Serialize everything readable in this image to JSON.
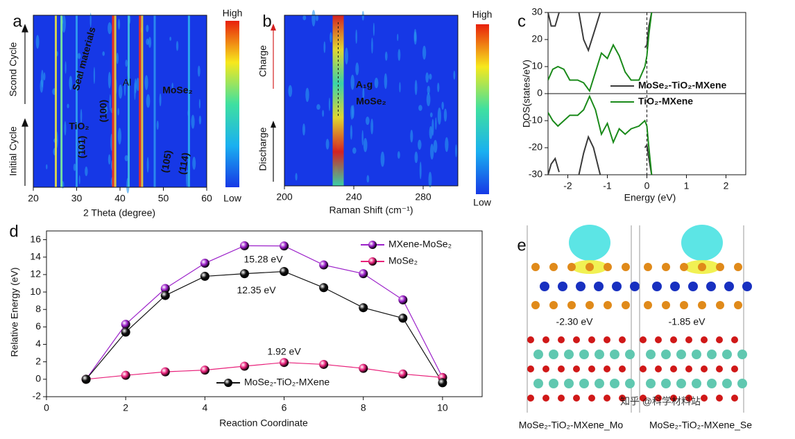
{
  "chart_data": [
    {
      "type": "heatmap",
      "panel": "a",
      "xlabel": "2 Theta (degree)",
      "xlim": [
        20,
        60
      ],
      "xticks": [
        20,
        30,
        40,
        50,
        60
      ],
      "background": "#1638e6",
      "peaks": [
        {
          "x": 25.2,
          "color": "#e8e040"
        },
        {
          "x": 26.5,
          "color": "#7ef09a"
        },
        {
          "x": 30.0,
          "color": "#30a0f0"
        },
        {
          "x": 38.4,
          "color": "#ff3010"
        },
        {
          "x": 38.9,
          "color": "#f0d030"
        },
        {
          "x": 42.0,
          "color": "#40c0e0"
        },
        {
          "x": 44.6,
          "color": "#ff3010"
        },
        {
          "x": 45.1,
          "color": "#f0d030"
        },
        {
          "x": 48.0,
          "color": "#2c90f0"
        },
        {
          "x": 55.9,
          "color": "#30b0f0"
        }
      ],
      "colorbar_labels": [
        "High",
        "Low"
      ],
      "colorbar_colors": [
        "#e8200c",
        "#f7e81c",
        "#3fe0a0",
        "#1ab0f0",
        "#1638e6"
      ],
      "annotations": [
        "Seal materials",
        "Al",
        "MoSe₂",
        "TiO₂",
        "(101)",
        "(100)",
        "(105)",
        "(114)",
        "Scond Cycle",
        "Initial Cycle"
      ]
    },
    {
      "type": "heatmap",
      "panel": "b",
      "xlabel": "Raman Shift (cm⁻¹)",
      "xlim": [
        200,
        300
      ],
      "xticks": [
        200,
        240,
        280
      ],
      "background": "#1638e6",
      "peaks": [
        {
          "x": 231,
          "color": "#2ed8c8"
        }
      ],
      "colorbar_labels": [
        "High",
        "Low"
      ],
      "colorbar_colors": [
        "#e8200c",
        "#f7e81c",
        "#3fe0a0",
        "#1ab0f0",
        "#1638e6"
      ],
      "annotations": [
        "Charge",
        "Discharge",
        "A₁g",
        "MoSe₂"
      ]
    },
    {
      "type": "line",
      "panel": "c",
      "xlabel": "Energy (eV)",
      "ylabel": "DOS(states/eV)",
      "xlim": [
        -2.5,
        2.5
      ],
      "xticks": [
        -2,
        -1,
        0,
        1,
        2
      ],
      "ylim": [
        -30,
        30
      ],
      "yticks": [
        -30,
        -20,
        -10,
        0,
        10,
        20,
        30
      ],
      "zero_lines": true,
      "series": [
        {
          "name": "MoSe₂-TiO₂-MXene",
          "color": "#3a3a3a",
          "x": [
            -2.5,
            -2.42,
            -2.32,
            -2.22,
            -2.0,
            -1.72,
            -1.6,
            -1.48,
            -1.35,
            -1.18,
            -0.6,
            -0.05,
            0,
            0.05,
            0.12
          ],
          "values": [
            30,
            25,
            25,
            30,
            null,
            30,
            20,
            16,
            22,
            30,
            null,
            17,
            18,
            25,
            30
          ]
        },
        {
          "color": "#3a3a3a",
          "x": [
            -2.5,
            -2.42,
            -2.32,
            -2.22,
            -2.0,
            -1.72,
            -1.6,
            -1.48,
            -1.35,
            -1.18,
            -0.6,
            -0.05,
            0,
            0.05,
            0.12
          ],
          "values": [
            -30,
            -26,
            -24,
            -29,
            null,
            -30,
            -22,
            -16,
            -20,
            -30,
            null,
            -20,
            -19,
            -24,
            -30
          ]
        },
        {
          "name": "TiO₂-MXene",
          "color": "#1a8a1a",
          "x": [
            -2.5,
            -2.38,
            -2.25,
            -2.1,
            -1.95,
            -1.75,
            -1.6,
            -1.45,
            -1.3,
            -1.15,
            -1.0,
            -0.85,
            -0.7,
            -0.55,
            -0.4,
            -0.2,
            -0.05,
            0,
            0.05,
            0.12
          ],
          "values": [
            5,
            9,
            10,
            9,
            5,
            5,
            4,
            1,
            8,
            15,
            13,
            18,
            14,
            8,
            5,
            5,
            10,
            14,
            22,
            30
          ]
        },
        {
          "color": "#1a8a1a",
          "x": [
            -2.5,
            -2.38,
            -2.25,
            -2.1,
            -1.95,
            -1.75,
            -1.6,
            -1.45,
            -1.3,
            -1.15,
            -1.0,
            -0.85,
            -0.7,
            -0.55,
            -0.4,
            -0.2,
            -0.05,
            0,
            0.05,
            0.12
          ],
          "values": [
            -7,
            -10,
            -12,
            -10,
            -8,
            -8,
            -6,
            -1,
            -6,
            -15,
            -11,
            -18,
            -13,
            -15,
            -13,
            -12,
            -10,
            -12,
            -20,
            -30
          ]
        }
      ]
    },
    {
      "type": "line",
      "panel": "d",
      "xlabel": "Reaction Coordinate",
      "ylabel": "Relative Energy (eV)",
      "xlim": [
        0,
        11
      ],
      "xticks": [
        0,
        2,
        4,
        6,
        8,
        10
      ],
      "ylim": [
        -2,
        17
      ],
      "yticks": [
        -2,
        0,
        2,
        4,
        6,
        8,
        10,
        12,
        14,
        16
      ],
      "markers": true,
      "series": [
        {
          "name": "MXene-MoSe₂",
          "color": "#9b1fc9",
          "x": [
            1,
            2,
            3,
            4,
            5,
            6,
            7,
            8,
            9,
            10
          ],
          "values": [
            0,
            6.3,
            10.4,
            13.3,
            15.3,
            15.28,
            13.1,
            12.1,
            9.1,
            0.2
          ],
          "value_labels": [
            null,
            null,
            null,
            null,
            null,
            "15.28 eV",
            null,
            null,
            null,
            null
          ]
        },
        {
          "name": "MoSe₂",
          "color": "#e8207a",
          "x": [
            1,
            2,
            3,
            4,
            5,
            6,
            7,
            8,
            9,
            10
          ],
          "values": [
            0,
            0.45,
            0.85,
            1.05,
            1.5,
            1.92,
            1.7,
            1.25,
            0.6,
            0.2
          ],
          "value_labels": [
            null,
            null,
            null,
            null,
            null,
            "1.92 eV",
            null,
            null,
            null,
            null
          ]
        },
        {
          "name": "MoSe₂-TiO₂-MXene",
          "color": "#111111",
          "x": [
            1,
            2,
            3,
            4,
            5,
            6,
            7,
            8,
            9,
            10
          ],
          "values": [
            0,
            5.4,
            9.6,
            11.8,
            12.1,
            12.35,
            10.5,
            8.2,
            7.0,
            -0.4
          ],
          "value_labels": [
            null,
            null,
            null,
            null,
            null,
            "12.35 eV",
            null,
            null,
            null,
            null
          ]
        }
      ]
    },
    {
      "type": "structure",
      "panel": "e",
      "labels": [
        "-2.30 eV",
        "-1.85 eV"
      ],
      "captions": [
        "MoSe₂-TiO₂-MXene_Mo",
        "MoSe₂-TiO₂-MXene_Se"
      ],
      "watermark": "知乎 @科学材料站"
    }
  ]
}
